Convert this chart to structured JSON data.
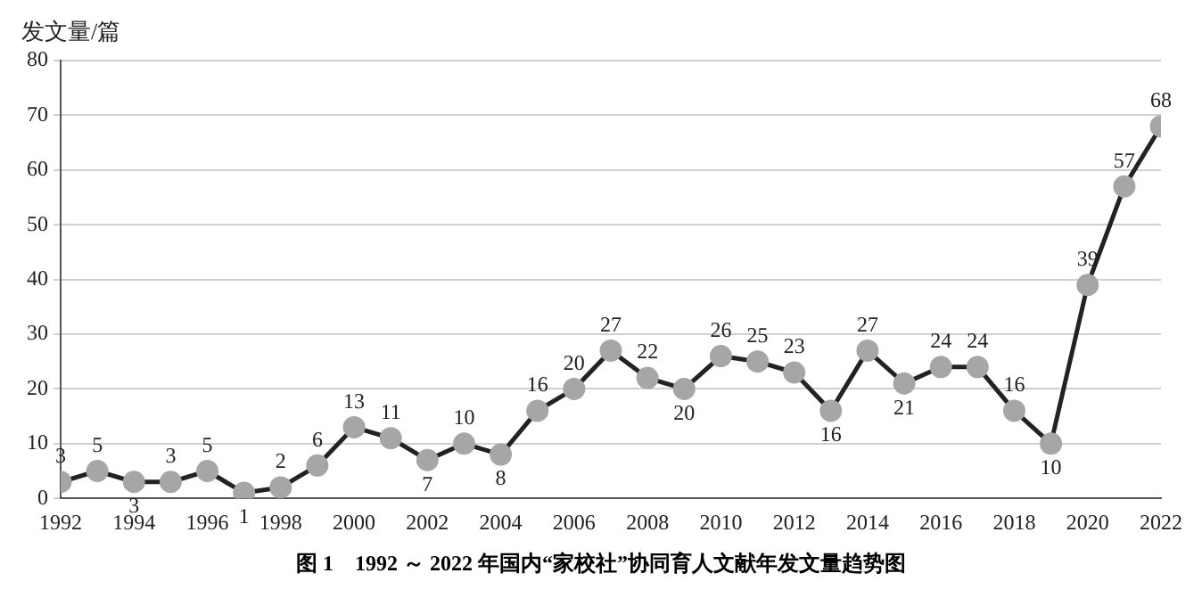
{
  "chart_data": {
    "type": "line",
    "title": "图 1　1992 ～ 2022 年国内“家校社”协同育人文献年发文量趋势图",
    "ylabel": "发文量/篇",
    "x": [
      1992,
      1993,
      1994,
      1995,
      1996,
      1997,
      1998,
      1999,
      2000,
      2001,
      2002,
      2003,
      2004,
      2005,
      2006,
      2007,
      2008,
      2009,
      2010,
      2011,
      2012,
      2013,
      2014,
      2015,
      2016,
      2017,
      2018,
      2019,
      2020,
      2021,
      2022
    ],
    "series": [
      {
        "color": "#222222",
        "values": [
          3,
          5,
          3,
          3,
          5,
          1,
          2,
          6,
          13,
          11,
          7,
          10,
          8,
          16,
          20,
          27,
          22,
          20,
          26,
          25,
          23,
          16,
          27,
          21,
          24,
          24,
          16,
          10,
          39,
          57,
          68
        ]
      }
    ],
    "xlim": [
      1992,
      2022
    ],
    "xticks": [
      1992,
      1994,
      1996,
      1998,
      2000,
      2002,
      2004,
      2006,
      2008,
      2010,
      2012,
      2014,
      2016,
      2018,
      2020,
      2022
    ],
    "ylim": [
      0,
      80
    ],
    "yticks": [
      0,
      10,
      20,
      30,
      40,
      50,
      60,
      70,
      80
    ],
    "grid": "y",
    "marker": "circle",
    "line_style": "solid",
    "legend": false,
    "data_labels": true
  }
}
